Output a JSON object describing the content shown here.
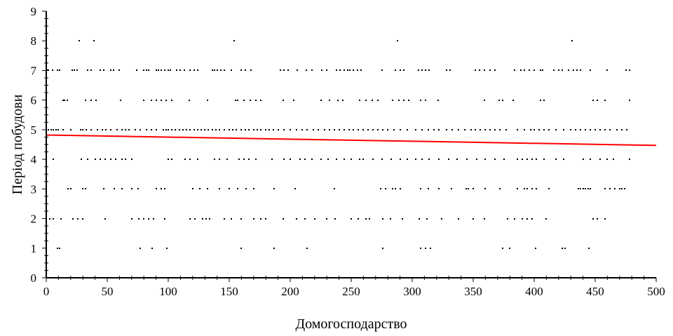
{
  "chart_data": {
    "type": "scatter",
    "title": "",
    "xlabel": "Домогосподарство",
    "ylabel": "Період побудови",
    "xlim": [
      0,
      500
    ],
    "ylim": [
      0,
      9
    ],
    "xticks": [
      0,
      50,
      100,
      150,
      200,
      250,
      300,
      350,
      400,
      450,
      500
    ],
    "yticks": [
      0,
      1,
      2,
      3,
      4,
      5,
      6,
      7,
      8,
      9
    ],
    "grid": false,
    "marker_color": "#000000",
    "trend_color": "#ff0000",
    "trend_line": {
      "x": [
        0,
        500
      ],
      "y": [
        4.82,
        4.47
      ]
    },
    "points_by_level": [
      {
        "y": 8,
        "x": [
          27,
          39,
          154,
          288,
          431
        ]
      },
      {
        "y": 7,
        "x": [
          1,
          2,
          5,
          9,
          11,
          21,
          23,
          25,
          34,
          37,
          44,
          47,
          53,
          55,
          60,
          74,
          80,
          82,
          84,
          90,
          92,
          94,
          97,
          100,
          102,
          107,
          110,
          113,
          118,
          121,
          124,
          136,
          138,
          140,
          143,
          146,
          152,
          160,
          163,
          168,
          192,
          195,
          198,
          206,
          213,
          218,
          226,
          230,
          238,
          241,
          244,
          247,
          249,
          252,
          255,
          258,
          275,
          286,
          290,
          293,
          305,
          308,
          311,
          314,
          328,
          331,
          352,
          355,
          359,
          364,
          368,
          384,
          389,
          392,
          396,
          400,
          405,
          407,
          416,
          420,
          423,
          428,
          432,
          435,
          438,
          446,
          460,
          475,
          478
        ]
      },
      {
        "y": 6,
        "x": [
          14,
          15,
          17,
          32,
          37,
          41,
          61,
          80,
          86,
          90,
          94,
          98,
          103,
          117,
          132,
          155,
          157,
          162,
          167,
          172,
          176,
          194,
          203,
          225,
          232,
          239,
          243,
          257,
          262,
          267,
          272,
          284,
          289,
          293,
          297,
          307,
          311,
          321,
          359,
          371,
          374,
          383,
          405,
          408,
          448,
          452,
          458,
          478
        ]
      },
      {
        "y": 5,
        "x": [
          0,
          2,
          4,
          6,
          8,
          10,
          14,
          20,
          28,
          30,
          33,
          37,
          42,
          46,
          49,
          53,
          58,
          62,
          65,
          68,
          73,
          77,
          82,
          86,
          90,
          96,
          98,
          100,
          103,
          106,
          109,
          112,
          115,
          118,
          121,
          124,
          127,
          130,
          133,
          136,
          139,
          142,
          146,
          150,
          153,
          156,
          160,
          163,
          166,
          170,
          173,
          176,
          180,
          183,
          186,
          190,
          195,
          200,
          205,
          210,
          214,
          219,
          223,
          228,
          232,
          236,
          240,
          244,
          248,
          252,
          256,
          260,
          264,
          268,
          272,
          276,
          280,
          285,
          290,
          296,
          303,
          308,
          313,
          318,
          322,
          328,
          333,
          338,
          343,
          348,
          352,
          356,
          360,
          364,
          368,
          372,
          377,
          386,
          392,
          397,
          400,
          404,
          408,
          412,
          418,
          424,
          430,
          434,
          438,
          442,
          446,
          450,
          454,
          458,
          462,
          468,
          472,
          476
        ]
      },
      {
        "y": 4,
        "x": [
          0,
          6,
          29,
          34,
          40,
          44,
          48,
          53,
          57,
          62,
          65,
          70,
          100,
          103,
          114,
          118,
          124,
          138,
          142,
          148,
          158,
          162,
          166,
          172,
          185,
          195,
          200,
          208,
          212,
          218,
          225,
          231,
          238,
          244,
          250,
          257,
          260,
          268,
          275,
          283,
          290,
          296,
          303,
          308,
          314,
          322,
          330,
          337,
          345,
          353,
          360,
          368,
          375,
          386,
          390,
          394,
          398,
          402,
          408,
          418,
          424,
          440,
          446,
          454,
          460,
          465,
          478
        ]
      },
      {
        "y": 3,
        "x": [
          18,
          20,
          30,
          32,
          47,
          56,
          62,
          70,
          75,
          90,
          94,
          97,
          120,
          126,
          132,
          142,
          150,
          157,
          164,
          170,
          187,
          204,
          236,
          274,
          278,
          284,
          286,
          290,
          307,
          313,
          322,
          332,
          344,
          346,
          350,
          360,
          372,
          386,
          392,
          394,
          398,
          402,
          412,
          436,
          438,
          440,
          442,
          444,
          446,
          458,
          462,
          466,
          470,
          472,
          474
        ]
      },
      {
        "y": 2,
        "x": [
          3,
          6,
          12,
          22,
          26,
          30,
          48,
          70,
          76,
          80,
          84,
          88,
          97,
          118,
          122,
          128,
          131,
          134,
          146,
          152,
          160,
          170,
          176,
          180,
          194,
          205,
          212,
          220,
          230,
          237,
          250,
          256,
          262,
          265,
          276,
          282,
          292,
          306,
          312,
          324,
          338,
          350,
          359,
          378,
          384,
          390,
          394,
          398,
          410,
          448,
          452,
          458
        ]
      },
      {
        "y": 1,
        "x": [
          9,
          11,
          77,
          87,
          99,
          160,
          187,
          214,
          276,
          307,
          311,
          315,
          374,
          380,
          401,
          423,
          425,
          445
        ]
      }
    ]
  }
}
